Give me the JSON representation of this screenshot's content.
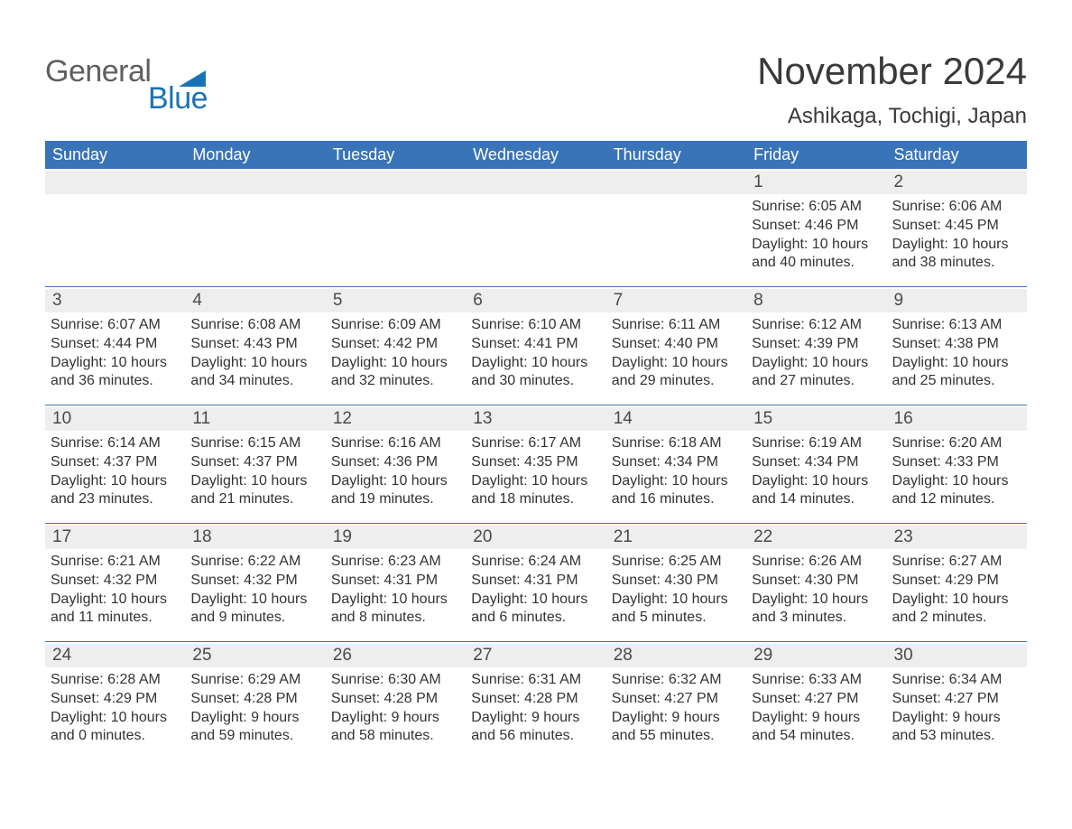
{
  "logo": {
    "word1": "General",
    "word2": "Blue"
  },
  "header": {
    "month": "November 2024",
    "location": "Ashikaga, Tochigi, Japan"
  },
  "colors": {
    "header_bg": "#3a74b8",
    "header_text": "#ffffff",
    "daynum_bg": "#eeeeee",
    "text": "#333333",
    "logo_gray": "#5f5f5f",
    "logo_blue": "#1a73b7"
  },
  "typography": {
    "title_fontsize": 42,
    "location_fontsize": 24,
    "dow_fontsize": 18,
    "body_fontsize": 16
  },
  "days_of_week": [
    "Sunday",
    "Monday",
    "Tuesday",
    "Wednesday",
    "Thursday",
    "Friday",
    "Saturday"
  ],
  "weeks": [
    [
      {
        "n": "",
        "sunrise": "",
        "sunset": "",
        "daylight": ""
      },
      {
        "n": "",
        "sunrise": "",
        "sunset": "",
        "daylight": ""
      },
      {
        "n": "",
        "sunrise": "",
        "sunset": "",
        "daylight": ""
      },
      {
        "n": "",
        "sunrise": "",
        "sunset": "",
        "daylight": ""
      },
      {
        "n": "",
        "sunrise": "",
        "sunset": "",
        "daylight": ""
      },
      {
        "n": "1",
        "sunrise": "Sunrise: 6:05 AM",
        "sunset": "Sunset: 4:46 PM",
        "daylight": "Daylight: 10 hours and 40 minutes."
      },
      {
        "n": "2",
        "sunrise": "Sunrise: 6:06 AM",
        "sunset": "Sunset: 4:45 PM",
        "daylight": "Daylight: 10 hours and 38 minutes."
      }
    ],
    [
      {
        "n": "3",
        "sunrise": "Sunrise: 6:07 AM",
        "sunset": "Sunset: 4:44 PM",
        "daylight": "Daylight: 10 hours and 36 minutes."
      },
      {
        "n": "4",
        "sunrise": "Sunrise: 6:08 AM",
        "sunset": "Sunset: 4:43 PM",
        "daylight": "Daylight: 10 hours and 34 minutes."
      },
      {
        "n": "5",
        "sunrise": "Sunrise: 6:09 AM",
        "sunset": "Sunset: 4:42 PM",
        "daylight": "Daylight: 10 hours and 32 minutes."
      },
      {
        "n": "6",
        "sunrise": "Sunrise: 6:10 AM",
        "sunset": "Sunset: 4:41 PM",
        "daylight": "Daylight: 10 hours and 30 minutes."
      },
      {
        "n": "7",
        "sunrise": "Sunrise: 6:11 AM",
        "sunset": "Sunset: 4:40 PM",
        "daylight": "Daylight: 10 hours and 29 minutes."
      },
      {
        "n": "8",
        "sunrise": "Sunrise: 6:12 AM",
        "sunset": "Sunset: 4:39 PM",
        "daylight": "Daylight: 10 hours and 27 minutes."
      },
      {
        "n": "9",
        "sunrise": "Sunrise: 6:13 AM",
        "sunset": "Sunset: 4:38 PM",
        "daylight": "Daylight: 10 hours and 25 minutes."
      }
    ],
    [
      {
        "n": "10",
        "sunrise": "Sunrise: 6:14 AM",
        "sunset": "Sunset: 4:37 PM",
        "daylight": "Daylight: 10 hours and 23 minutes."
      },
      {
        "n": "11",
        "sunrise": "Sunrise: 6:15 AM",
        "sunset": "Sunset: 4:37 PM",
        "daylight": "Daylight: 10 hours and 21 minutes."
      },
      {
        "n": "12",
        "sunrise": "Sunrise: 6:16 AM",
        "sunset": "Sunset: 4:36 PM",
        "daylight": "Daylight: 10 hours and 19 minutes."
      },
      {
        "n": "13",
        "sunrise": "Sunrise: 6:17 AM",
        "sunset": "Sunset: 4:35 PM",
        "daylight": "Daylight: 10 hours and 18 minutes."
      },
      {
        "n": "14",
        "sunrise": "Sunrise: 6:18 AM",
        "sunset": "Sunset: 4:34 PM",
        "daylight": "Daylight: 10 hours and 16 minutes."
      },
      {
        "n": "15",
        "sunrise": "Sunrise: 6:19 AM",
        "sunset": "Sunset: 4:34 PM",
        "daylight": "Daylight: 10 hours and 14 minutes."
      },
      {
        "n": "16",
        "sunrise": "Sunrise: 6:20 AM",
        "sunset": "Sunset: 4:33 PM",
        "daylight": "Daylight: 10 hours and 12 minutes."
      }
    ],
    [
      {
        "n": "17",
        "sunrise": "Sunrise: 6:21 AM",
        "sunset": "Sunset: 4:32 PM",
        "daylight": "Daylight: 10 hours and 11 minutes."
      },
      {
        "n": "18",
        "sunrise": "Sunrise: 6:22 AM",
        "sunset": "Sunset: 4:32 PM",
        "daylight": "Daylight: 10 hours and 9 minutes."
      },
      {
        "n": "19",
        "sunrise": "Sunrise: 6:23 AM",
        "sunset": "Sunset: 4:31 PM",
        "daylight": "Daylight: 10 hours and 8 minutes."
      },
      {
        "n": "20",
        "sunrise": "Sunrise: 6:24 AM",
        "sunset": "Sunset: 4:31 PM",
        "daylight": "Daylight: 10 hours and 6 minutes."
      },
      {
        "n": "21",
        "sunrise": "Sunrise: 6:25 AM",
        "sunset": "Sunset: 4:30 PM",
        "daylight": "Daylight: 10 hours and 5 minutes."
      },
      {
        "n": "22",
        "sunrise": "Sunrise: 6:26 AM",
        "sunset": "Sunset: 4:30 PM",
        "daylight": "Daylight: 10 hours and 3 minutes."
      },
      {
        "n": "23",
        "sunrise": "Sunrise: 6:27 AM",
        "sunset": "Sunset: 4:29 PM",
        "daylight": "Daylight: 10 hours and 2 minutes."
      }
    ],
    [
      {
        "n": "24",
        "sunrise": "Sunrise: 6:28 AM",
        "sunset": "Sunset: 4:29 PM",
        "daylight": "Daylight: 10 hours and 0 minutes."
      },
      {
        "n": "25",
        "sunrise": "Sunrise: 6:29 AM",
        "sunset": "Sunset: 4:28 PM",
        "daylight": "Daylight: 9 hours and 59 minutes."
      },
      {
        "n": "26",
        "sunrise": "Sunrise: 6:30 AM",
        "sunset": "Sunset: 4:28 PM",
        "daylight": "Daylight: 9 hours and 58 minutes."
      },
      {
        "n": "27",
        "sunrise": "Sunrise: 6:31 AM",
        "sunset": "Sunset: 4:28 PM",
        "daylight": "Daylight: 9 hours and 56 minutes."
      },
      {
        "n": "28",
        "sunrise": "Sunrise: 6:32 AM",
        "sunset": "Sunset: 4:27 PM",
        "daylight": "Daylight: 9 hours and 55 minutes."
      },
      {
        "n": "29",
        "sunrise": "Sunrise: 6:33 AM",
        "sunset": "Sunset: 4:27 PM",
        "daylight": "Daylight: 9 hours and 54 minutes."
      },
      {
        "n": "30",
        "sunrise": "Sunrise: 6:34 AM",
        "sunset": "Sunset: 4:27 PM",
        "daylight": "Daylight: 9 hours and 53 minutes."
      }
    ]
  ]
}
